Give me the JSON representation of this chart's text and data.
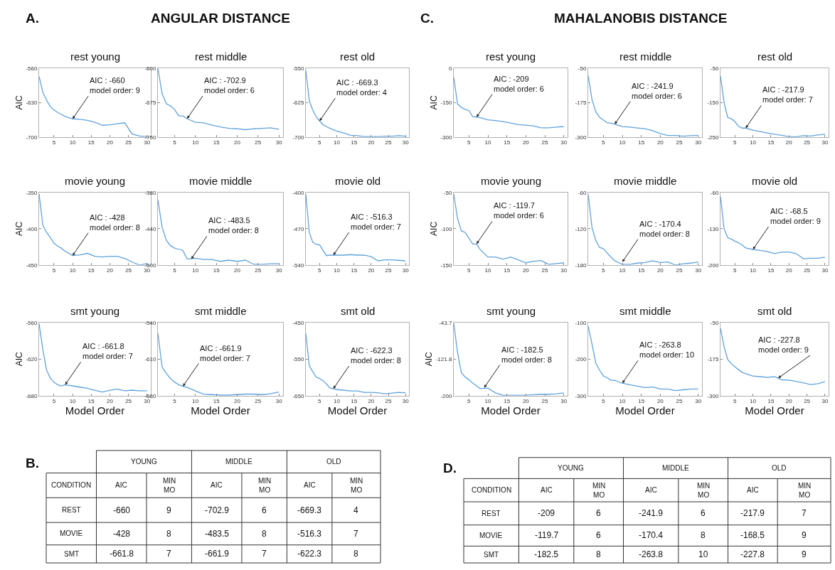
{
  "chart_data": [
    {
      "type": "other",
      "title": "ANGULAR DISTANCE",
      "annotations": [
        "A."
      ]
    },
    {
      "type": "line",
      "title": "rest young",
      "ylabel": "AIC",
      "x": [
        1,
        2,
        3,
        4,
        5,
        6,
        7,
        8,
        10,
        12,
        14,
        16,
        18,
        20,
        22,
        24,
        26,
        28,
        30
      ],
      "values": [
        -577,
        -609,
        -625,
        -638,
        -645,
        -650,
        -654,
        -658,
        -663,
        -664,
        -666,
        -670,
        -676,
        -675,
        -673,
        -671,
        -694,
        -698,
        -699
      ],
      "color": "#5fa2dd",
      "xlim": [
        1,
        31
      ],
      "xticks": [
        5,
        10,
        15,
        20,
        25,
        30
      ],
      "ylim": [
        -700,
        -560
      ],
      "yticks": [
        -700,
        -630,
        -560
      ],
      "annotations": [
        {
          "text": "AIC : -660\nmodel order: 9",
          "x": 10,
          "y": -663
        }
      ]
    },
    {
      "type": "line",
      "title": "rest middle",
      "x": [
        1,
        2,
        3,
        4,
        5,
        6,
        7,
        8,
        10,
        12,
        14,
        16,
        18,
        20,
        22,
        24,
        26,
        28,
        30
      ],
      "values": [
        -600,
        -655,
        -677,
        -682,
        -690,
        -704,
        -704,
        -710,
        -718,
        -719,
        -724,
        -728,
        -731,
        -732,
        -734,
        -732,
        -731,
        -730,
        -733
      ],
      "color": "#5fa2dd",
      "xlim": [
        1,
        31
      ],
      "xticks": [
        5,
        10,
        15,
        20,
        25,
        30
      ],
      "ylim": [
        -750,
        -600
      ],
      "yticks": [
        -750,
        -675,
        -600
      ],
      "annotations": [
        {
          "text": "AIC : -702.9\nmodel order: 6",
          "x": 8,
          "y": -710
        }
      ]
    },
    {
      "type": "line",
      "title": "rest old",
      "x": [
        1,
        2,
        3,
        4,
        5,
        6,
        7,
        8,
        10,
        12,
        14,
        16,
        18,
        20,
        22,
        24,
        26,
        28,
        30
      ],
      "values": [
        -555,
        -621,
        -641,
        -656,
        -665,
        -673,
        -677,
        -681,
        -687,
        -691,
        -696,
        -697,
        -699,
        -699,
        -699,
        -698,
        -698,
        -697,
        -698
      ],
      "color": "#5fa2dd",
      "xlim": [
        1,
        31
      ],
      "xticks": [
        5,
        10,
        15,
        20,
        25,
        30
      ],
      "ylim": [
        -700,
        -550
      ],
      "yticks": [
        -700,
        -625,
        -550
      ],
      "annotations": [
        {
          "text": "AIC : -669.3\nmodel order: 4",
          "x": 5,
          "y": -665
        }
      ]
    },
    {
      "type": "line",
      "title": "movie young",
      "ylabel": "AIC",
      "x": [
        1,
        2,
        3,
        4,
        5,
        6,
        7,
        8,
        10,
        12,
        14,
        16,
        18,
        20,
        22,
        24,
        26,
        28,
        30
      ],
      "values": [
        -352,
        -395,
        -405,
        -412,
        -420,
        -424,
        -427,
        -431,
        -437,
        -436,
        -434,
        -438,
        -439,
        -438,
        -438,
        -441,
        -446,
        -450,
        -448
      ],
      "color": "#5fa2dd",
      "xlim": [
        1,
        31
      ],
      "xticks": [
        5,
        10,
        15,
        20,
        25,
        30
      ],
      "ylim": [
        -450,
        -350
      ],
      "yticks": [
        -450,
        -400,
        -350
      ],
      "annotations": [
        {
          "text": "AIC : -428\nmodel order: 8",
          "x": 10,
          "y": -437
        }
      ]
    },
    {
      "type": "line",
      "title": "movie middle",
      "x": [
        1,
        2,
        3,
        4,
        5,
        6,
        7,
        8,
        10,
        12,
        14,
        16,
        18,
        20,
        22,
        24,
        26,
        28,
        30
      ],
      "values": [
        -392,
        -437,
        -459,
        -468,
        -472,
        -474,
        -476,
        -490,
        -489,
        -491,
        -491,
        -494,
        -492,
        -494,
        -492,
        -499,
        -499,
        -498,
        -498
      ],
      "color": "#5fa2dd",
      "xlim": [
        1,
        31
      ],
      "xticks": [
        5,
        10,
        15,
        20,
        25,
        30
      ],
      "ylim": [
        -500,
        -380
      ],
      "yticks": [
        -500,
        -440,
        -380
      ],
      "annotations": [
        {
          "text": "AIC : -483.5\nmodel order: 8",
          "x": 9,
          "y": -490
        }
      ]
    },
    {
      "type": "line",
      "title": "movie old",
      "x": [
        1,
        2,
        3,
        4,
        5,
        6,
        7,
        8,
        10,
        12,
        14,
        16,
        18,
        20,
        22,
        24,
        26,
        28,
        30
      ],
      "values": [
        -403,
        -477,
        -496,
        -500,
        -501,
        -512,
        -522,
        -521,
        -521,
        -521,
        -520,
        -521,
        -521,
        -524,
        -532,
        -530,
        -530,
        -531,
        -532
      ],
      "color": "#5fa2dd",
      "xlim": [
        1,
        31
      ],
      "xticks": [
        5,
        10,
        15,
        20,
        25,
        30
      ],
      "ylim": [
        -540,
        -400
      ],
      "yticks": [
        -540,
        -470,
        -400
      ],
      "annotations": [
        {
          "text": "AIC : -516.3\nmodel order: 7",
          "x": 9,
          "y": -521
        }
      ]
    },
    {
      "type": "line",
      "title": "smt young",
      "xlabel": "Model Order",
      "ylabel": "AIC",
      "x": [
        1,
        2,
        3,
        4,
        5,
        6,
        7,
        8,
        10,
        12,
        14,
        16,
        18,
        20,
        22,
        24,
        26,
        28,
        30
      ],
      "values": [
        -562,
        -604,
        -638,
        -651,
        -658,
        -662,
        -664,
        -662,
        -664,
        -666,
        -668,
        -671,
        -674,
        -671,
        -669,
        -672,
        -671,
        -672,
        -672
      ],
      "color": "#5fa2dd",
      "xlim": [
        1,
        31
      ],
      "xticks": [
        5,
        10,
        15,
        20,
        25,
        30
      ],
      "ylim": [
        -680,
        -560
      ],
      "yticks": [
        -680,
        -620,
        -560
      ],
      "annotations": [
        {
          "text": "AIC : -661.8\nmodel order: 7",
          "x": 8,
          "y": -662
        }
      ]
    },
    {
      "type": "line",
      "title": "smt middle",
      "xlabel": "Model Order",
      "x": [
        1,
        2,
        3,
        4,
        5,
        6,
        7,
        8,
        10,
        12,
        14,
        16,
        18,
        20,
        22,
        24,
        26,
        28,
        30
      ],
      "values": [
        -560,
        -625,
        -637,
        -647,
        -654,
        -659,
        -662,
        -664,
        -671,
        -677,
        -678,
        -679,
        -679,
        -678,
        -677,
        -677,
        -678,
        -676,
        -673
      ],
      "color": "#5fa2dd",
      "xlim": [
        1,
        31
      ],
      "xticks": [
        5,
        10,
        15,
        20,
        25,
        30
      ],
      "ylim": [
        -680,
        -540
      ],
      "yticks": [
        -680,
        -610,
        -540
      ],
      "annotations": [
        {
          "text": "AIC : -661.9\nmodel order: 7",
          "x": 7,
          "y": -662
        }
      ]
    },
    {
      "type": "line",
      "title": "smt old",
      "xlabel": "Model Order",
      "x": [
        1,
        2,
        3,
        4,
        5,
        6,
        7,
        8,
        10,
        12,
        14,
        16,
        18,
        20,
        22,
        24,
        26,
        28,
        30
      ],
      "values": [
        -480,
        -568,
        -584,
        -599,
        -603,
        -609,
        -618,
        -629,
        -633,
        -635,
        -637,
        -637,
        -641,
        -641,
        -642,
        -645,
        -643,
        -641,
        -642
      ],
      "color": "#5fa2dd",
      "xlim": [
        1,
        31
      ],
      "xticks": [
        5,
        10,
        15,
        20,
        25,
        30
      ],
      "ylim": [
        -650,
        -450
      ],
      "yticks": [
        -650,
        -550,
        -450
      ],
      "annotations": [
        {
          "text": "AIC : -622.3\nmodel order: 8",
          "x": 9,
          "y": -631
        }
      ]
    },
    {
      "type": "other",
      "title": "MAHALANOBIS DISTANCE",
      "annotations": [
        "C."
      ]
    },
    {
      "type": "line",
      "title": "rest young",
      "ylabel": "AIC",
      "x": [
        1,
        2,
        3,
        4,
        5,
        6,
        7,
        8,
        10,
        12,
        14,
        16,
        18,
        20,
        22,
        24,
        26,
        28,
        30
      ],
      "values": [
        -40,
        -156,
        -171,
        -179,
        -185,
        -211,
        -213,
        -216,
        -225,
        -228,
        -233,
        -239,
        -246,
        -248,
        -251,
        -260,
        -260,
        -257,
        -254
      ],
      "color": "#5fa2dd",
      "xlim": [
        1,
        31
      ],
      "xticks": [
        5,
        10,
        15,
        20,
        25,
        30
      ],
      "ylim": [
        -300,
        0
      ],
      "yticks": [
        -300,
        -150,
        0
      ],
      "annotations": [
        {
          "text": "AIC : -209\nmodel order: 6",
          "x": 7,
          "y": -213
        }
      ]
    },
    {
      "type": "line",
      "title": "rest middle",
      "x": [
        1,
        2,
        3,
        4,
        5,
        6,
        7,
        8,
        10,
        12,
        14,
        16,
        18,
        20,
        22,
        24,
        26,
        28,
        30
      ],
      "values": [
        -77,
        -164,
        -208,
        -228,
        -238,
        -248,
        -250,
        -253,
        -262,
        -264,
        -267,
        -270,
        -277,
        -287,
        -294,
        -294,
        -297,
        -295,
        -294
      ],
      "color": "#5fa2dd",
      "xlim": [
        1,
        31
      ],
      "xticks": [
        5,
        10,
        15,
        20,
        25,
        30
      ],
      "ylim": [
        -300,
        -50
      ],
      "yticks": [
        -300,
        -175,
        -50
      ],
      "annotations": [
        {
          "text": "AIC : -241.9\nmodel order: 6",
          "x": 8,
          "y": -253
        }
      ]
    },
    {
      "type": "line",
      "title": "rest old",
      "x": [
        1,
        2,
        3,
        4,
        5,
        6,
        7,
        8,
        10,
        12,
        14,
        16,
        18,
        20,
        22,
        24,
        26,
        28,
        30
      ],
      "values": [
        -73,
        -150,
        -193,
        -197,
        -205,
        -219,
        -224,
        -224,
        -230,
        -234,
        -238,
        -242,
        -245,
        -249,
        -249,
        -246,
        -247,
        -244,
        -242
      ],
      "color": "#5fa2dd",
      "xlim": [
        1,
        31
      ],
      "xticks": [
        5,
        10,
        15,
        20,
        25,
        30
      ],
      "ylim": [
        -250,
        -50
      ],
      "yticks": [
        -250,
        -150,
        -50
      ],
      "annotations": [
        {
          "text": "AIC : -217.9\nmodel order: 7",
          "x": 8,
          "y": -224
        }
      ]
    },
    {
      "type": "line",
      "title": "movie young",
      "ylabel": "AIC",
      "x": [
        1,
        2,
        3,
        4,
        5,
        6,
        7,
        8,
        10,
        12,
        14,
        16,
        18,
        20,
        22,
        24,
        26,
        28,
        30
      ],
      "values": [
        -52,
        -86,
        -103,
        -105,
        -113,
        -121,
        -121,
        -129,
        -139,
        -139,
        -142,
        -139,
        -143,
        -147,
        -145,
        -144,
        -149,
        -148,
        -147
      ],
      "color": "#5fa2dd",
      "xlim": [
        1,
        31
      ],
      "xticks": [
        5,
        10,
        15,
        20,
        25,
        30
      ],
      "ylim": [
        -150,
        -50
      ],
      "yticks": [
        -150,
        -100,
        -50
      ],
      "annotations": [
        {
          "text": "AIC : -119.7\nmodel order: 6",
          "x": 7,
          "y": -121
        }
      ]
    },
    {
      "type": "line",
      "title": "movie middle",
      "x": [
        1,
        2,
        3,
        4,
        5,
        6,
        7,
        8,
        10,
        12,
        14,
        16,
        18,
        20,
        22,
        24,
        26,
        28,
        30
      ],
      "values": [
        -63,
        -118,
        -139,
        -151,
        -153,
        -160,
        -167,
        -173,
        -179,
        -179,
        -177,
        -176,
        -173,
        -176,
        -175,
        -180,
        -178,
        -177,
        -175
      ],
      "color": "#5fa2dd",
      "xlim": [
        1,
        31
      ],
      "xticks": [
        5,
        10,
        15,
        20,
        25,
        30
      ],
      "ylim": [
        -180,
        -60
      ],
      "yticks": [
        -180,
        -120,
        -60
      ],
      "annotations": [
        {
          "text": "AIC : -170.4\nmodel order: 8",
          "x": 10,
          "y": -175
        }
      ]
    },
    {
      "type": "line",
      "title": "movie old",
      "x": [
        1,
        2,
        3,
        4,
        5,
        6,
        7,
        8,
        10,
        12,
        14,
        16,
        18,
        20,
        22,
        24,
        26,
        28,
        30
      ],
      "values": [
        -68,
        -130,
        -147,
        -150,
        -154,
        -157,
        -161,
        -167,
        -170,
        -172,
        -174,
        -178,
        -175,
        -175,
        -178,
        -188,
        -187,
        -187,
        -185
      ],
      "color": "#5fa2dd",
      "xlim": [
        1,
        31
      ],
      "xticks": [
        5,
        10,
        15,
        20,
        25,
        30
      ],
      "ylim": [
        -200,
        -60
      ],
      "yticks": [
        -200,
        -130,
        -60
      ],
      "annotations": [
        {
          "text": "AIC : -68.5\nmodel order: 9",
          "x": 10,
          "y": -170
        }
      ]
    },
    {
      "type": "line",
      "title": "smt young",
      "xlabel": "Model Order",
      "ylabel": "AIC",
      "x": [
        1,
        2,
        3,
        4,
        5,
        6,
        7,
        8,
        10,
        12,
        14,
        16,
        18,
        20,
        22,
        24,
        26,
        28,
        30
      ],
      "values": [
        -45,
        -108,
        -151,
        -160,
        -166,
        -173,
        -179,
        -185,
        -184,
        -194,
        -199,
        -199,
        -199,
        -199,
        -198,
        -197,
        -197,
        -196,
        -194
      ],
      "color": "#5fa2dd",
      "xlim": [
        1,
        31
      ],
      "xticks": [
        5,
        10,
        15,
        20,
        25,
        30
      ],
      "ylim": [
        -200,
        -43.7
      ],
      "yticks": [
        -200,
        -121.8,
        -43.7
      ],
      "annotations": [
        {
          "text": "AIC : -182.5\nmodel order: 8",
          "x": 9,
          "y": -183
        }
      ]
    },
    {
      "type": "line",
      "title": "smt middle",
      "xlabel": "Model Order",
      "x": [
        1,
        2,
        3,
        4,
        5,
        6,
        7,
        8,
        10,
        12,
        14,
        16,
        18,
        20,
        22,
        24,
        26,
        28,
        30
      ],
      "values": [
        -110,
        -159,
        -211,
        -230,
        -246,
        -251,
        -258,
        -258,
        -266,
        -270,
        -274,
        -278,
        -276,
        -282,
        -282,
        -286,
        -284,
        -282,
        -282
      ],
      "color": "#5fa2dd",
      "xlim": [
        1,
        31
      ],
      "xticks": [
        5,
        10,
        15,
        20,
        25,
        30
      ],
      "ylim": [
        -300,
        -100
      ],
      "yticks": [
        -300,
        -200,
        -100
      ],
      "annotations": [
        {
          "text": "AIC : -263.8\nmodel order: 10",
          "x": 10,
          "y": -266
        }
      ]
    },
    {
      "type": "line",
      "title": "smt old",
      "xlabel": "Model Order",
      "x": [
        1,
        2,
        3,
        4,
        5,
        6,
        7,
        8,
        10,
        12,
        14,
        16,
        18,
        20,
        22,
        24,
        26,
        28,
        30
      ],
      "values": [
        -70,
        -133,
        -176,
        -191,
        -201,
        -211,
        -220,
        -225,
        -233,
        -235,
        -237,
        -235,
        -246,
        -247,
        -251,
        -256,
        -262,
        -259,
        -252
      ],
      "color": "#5fa2dd",
      "xlim": [
        1,
        31
      ],
      "xticks": [
        5,
        10,
        15,
        20,
        25,
        30
      ],
      "ylim": [
        -300,
        -50
      ],
      "yticks": [
        -300,
        -175,
        -50
      ],
      "annotations": [
        {
          "text": "AIC : -227.8\nmodel order: 9",
          "x": 17,
          "y": -240
        }
      ]
    },
    {
      "type": "other",
      "title": "B.",
      "categories": [
        "YOUNG",
        "MIDDLE",
        "OLD"
      ],
      "y_categories": [
        "REST",
        "MOVIE",
        "SMT"
      ],
      "annotations": [
        "CONDITION",
        "AIC",
        "MIN MO",
        "AIC",
        "MIN MO",
        "AIC",
        "MIN MO",
        "-660",
        "9",
        "-702.9",
        "6",
        "-669.3",
        "4",
        "-428",
        "8",
        "-483.5",
        "8",
        "-516.3",
        "7",
        "-661.8",
        "7",
        "-661.9",
        "7",
        "-622.3",
        "8"
      ]
    },
    {
      "type": "other",
      "title": "D.",
      "categories": [
        "YOUNG",
        "MIDDLE",
        "OLD"
      ],
      "y_categories": [
        "REST",
        "MOVIE",
        "SMT"
      ],
      "annotations": [
        "CONDITION",
        "AIC",
        "MIN MO",
        "AIC",
        "MIN MO",
        "AIC",
        "MIN MO",
        "-209",
        "6",
        "-241.9",
        "6",
        "-217.9",
        "7",
        "-119.7",
        "6",
        "-170.4",
        "8",
        "-168.5",
        "9",
        "-182.5",
        "8",
        "-263.8",
        "10",
        "-227.8",
        "9"
      ]
    }
  ]
}
